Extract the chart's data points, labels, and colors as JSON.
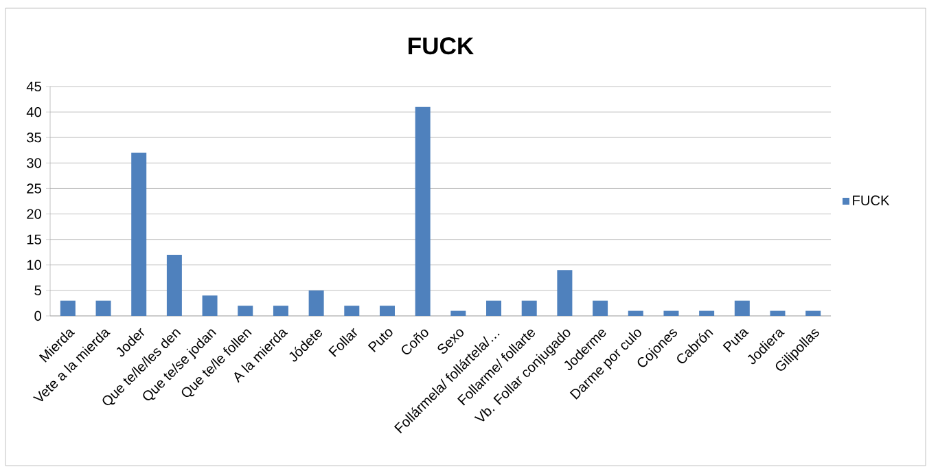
{
  "chart_data": {
    "type": "bar",
    "title": "FUCK",
    "categories": [
      "Mierda",
      "Vete a la mierda",
      "Joder",
      "Que te/le/les den",
      "Que te/se jodan",
      "Que te/le follen",
      "A la mierda",
      "Jódete",
      "Follar",
      "Puto",
      "Coño",
      "Sexo",
      "Follármela/ follártela/…",
      "Follarme/ follarte",
      "Vb. Follar conjugado",
      "Joderme",
      "Darme por culo",
      "Cojones",
      "Cabrón",
      "Puta",
      "Jodiera",
      "Gilipollas"
    ],
    "series": [
      {
        "name": "FUCK",
        "color": "#4f81bd",
        "values": [
          3,
          3,
          32,
          12,
          4,
          2,
          2,
          5,
          2,
          2,
          41,
          1,
          3,
          3,
          9,
          3,
          1,
          1,
          1,
          3,
          1,
          1
        ]
      }
    ],
    "ylim": [
      0,
      45
    ],
    "yticks": [
      0,
      5,
      10,
      15,
      20,
      25,
      30,
      35,
      40,
      45
    ],
    "grid": "y",
    "legend": "right"
  }
}
